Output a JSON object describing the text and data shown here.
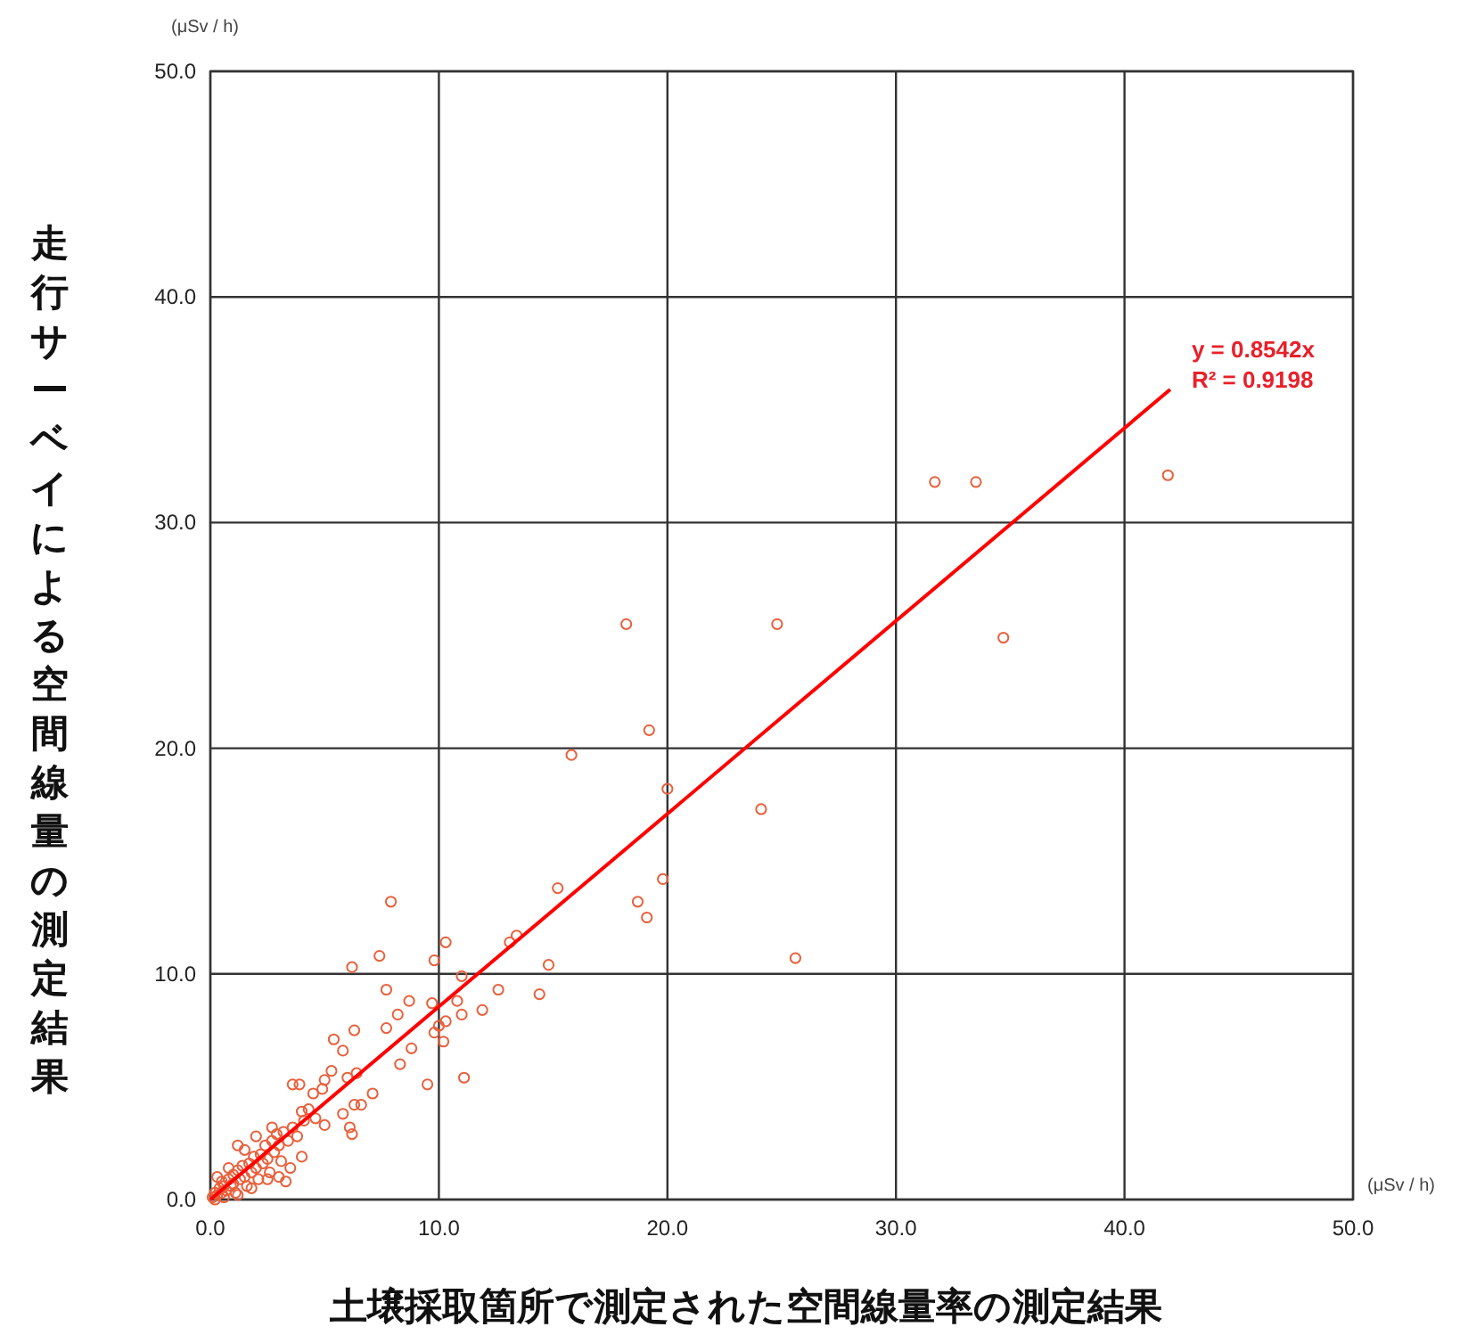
{
  "chart_data": {
    "type": "scatter",
    "xlabel": "土壌採取箇所で測定された空間線量率の測定結果",
    "ylabel": "走行サーベイによる空間線量の測定結果",
    "xlim": [
      0,
      50
    ],
    "ylim": [
      0,
      50
    ],
    "xticks": [
      {
        "value": 0,
        "label": "0.0"
      },
      {
        "value": 10,
        "label": "10.0"
      },
      {
        "value": 20,
        "label": "20.0"
      },
      {
        "value": 30,
        "label": "30.0"
      },
      {
        "value": 40,
        "label": "40.0"
      },
      {
        "value": 50,
        "label": "50.0"
      }
    ],
    "yticks": [
      {
        "value": 0,
        "label": "0.0"
      },
      {
        "value": 10,
        "label": "10.0"
      },
      {
        "value": 20,
        "label": "20.0"
      },
      {
        "value": 30,
        "label": "30.0"
      },
      {
        "value": 40,
        "label": "40.0"
      },
      {
        "value": 50,
        "label": "50.0"
      }
    ],
    "grid": true,
    "annotations": [
      "(μSv / h)",
      "(μSv / h)",
      {
        "text": "y = 0.8542x\nR² = 0.9198",
        "x": 42,
        "y": 35.9
      }
    ],
    "series": [
      {
        "marker": "circle",
        "color": "#e8603c",
        "x": [
          31.7,
          33.5,
          41.9,
          24.8,
          34.7,
          24.1,
          25.6,
          18.2,
          19.2,
          15.8,
          20.0,
          15.2,
          19.8,
          18.7,
          19.1,
          14.8,
          14.4,
          7.9,
          10.3,
          13.1,
          13.4,
          6.2,
          7.4,
          9.8,
          11.0,
          7.7,
          8.7,
          12.6,
          9.7,
          10.8,
          11.9,
          8.2,
          11.0,
          6.3,
          7.7,
          10.0,
          10.3,
          9.8,
          10.2,
          5.4,
          5.8,
          8.8,
          8.3,
          5.3,
          6.4,
          9.5,
          11.1,
          3.6,
          3.9,
          5.0,
          6.0,
          4.5,
          4.9,
          7.1,
          6.3,
          6.6,
          5.8,
          4.0,
          6.1,
          6.2,
          4.0,
          5.0,
          1.2,
          2.7,
          3.3,
          3.5,
          0.1,
          0.2,
          0.3,
          0.4,
          0.5,
          0.5,
          0.6,
          0.7,
          0.8,
          0.9,
          1.0,
          1.0,
          1.1,
          1.2,
          1.3,
          1.4,
          1.5,
          1.6,
          1.7,
          1.8,
          1.9,
          2.0,
          2.1,
          2.2,
          2.3,
          2.4,
          2.5,
          2.6,
          2.7,
          2.8,
          2.9,
          3.0,
          3.1,
          3.2,
          3.4,
          3.6,
          3.8,
          4.1,
          4.3,
          4.6,
          0.3,
          0.8,
          1.5,
          2.0,
          0.2,
          0.6,
          1.2,
          1.8,
          2.5,
          3.0
        ],
        "values": [
          31.8,
          31.8,
          32.1,
          25.5,
          24.9,
          17.3,
          10.7,
          25.5,
          20.8,
          19.7,
          18.2,
          13.8,
          14.2,
          13.2,
          12.5,
          10.4,
          9.1,
          13.2,
          11.4,
          11.4,
          11.7,
          10.3,
          10.8,
          10.6,
          9.9,
          9.3,
          8.8,
          9.3,
          8.7,
          8.8,
          8.4,
          8.2,
          8.2,
          7.5,
          7.6,
          7.7,
          7.9,
          7.4,
          7.0,
          7.1,
          6.6,
          6.7,
          6.0,
          5.7,
          5.6,
          5.1,
          5.4,
          5.1,
          5.1,
          5.3,
          5.4,
          4.7,
          4.9,
          4.7,
          4.2,
          4.2,
          3.8,
          3.9,
          3.2,
          2.9,
          1.9,
          3.3,
          2.4,
          3.2,
          0.8,
          1.4,
          0.1,
          0.3,
          0.2,
          0.5,
          0.3,
          0.8,
          0.6,
          0.4,
          0.9,
          0.6,
          1.1,
          0.7,
          0.3,
          1.3,
          0.9,
          1.5,
          1.0,
          0.6,
          1.6,
          1.2,
          1.9,
          1.4,
          0.9,
          2.0,
          1.6,
          2.4,
          1.8,
          1.2,
          2.6,
          2.1,
          2.9,
          2.4,
          1.7,
          3.0,
          2.6,
          3.2,
          2.8,
          3.5,
          4.0,
          3.6,
          1.0,
          1.4,
          2.2,
          2.8,
          0.0,
          0.1,
          0.2,
          0.5,
          0.9,
          1.0
        ]
      },
      {
        "type": "line",
        "color": "#ff0000",
        "x": [
          0,
          42
        ],
        "values": [
          0,
          35.9
        ]
      }
    ]
  }
}
